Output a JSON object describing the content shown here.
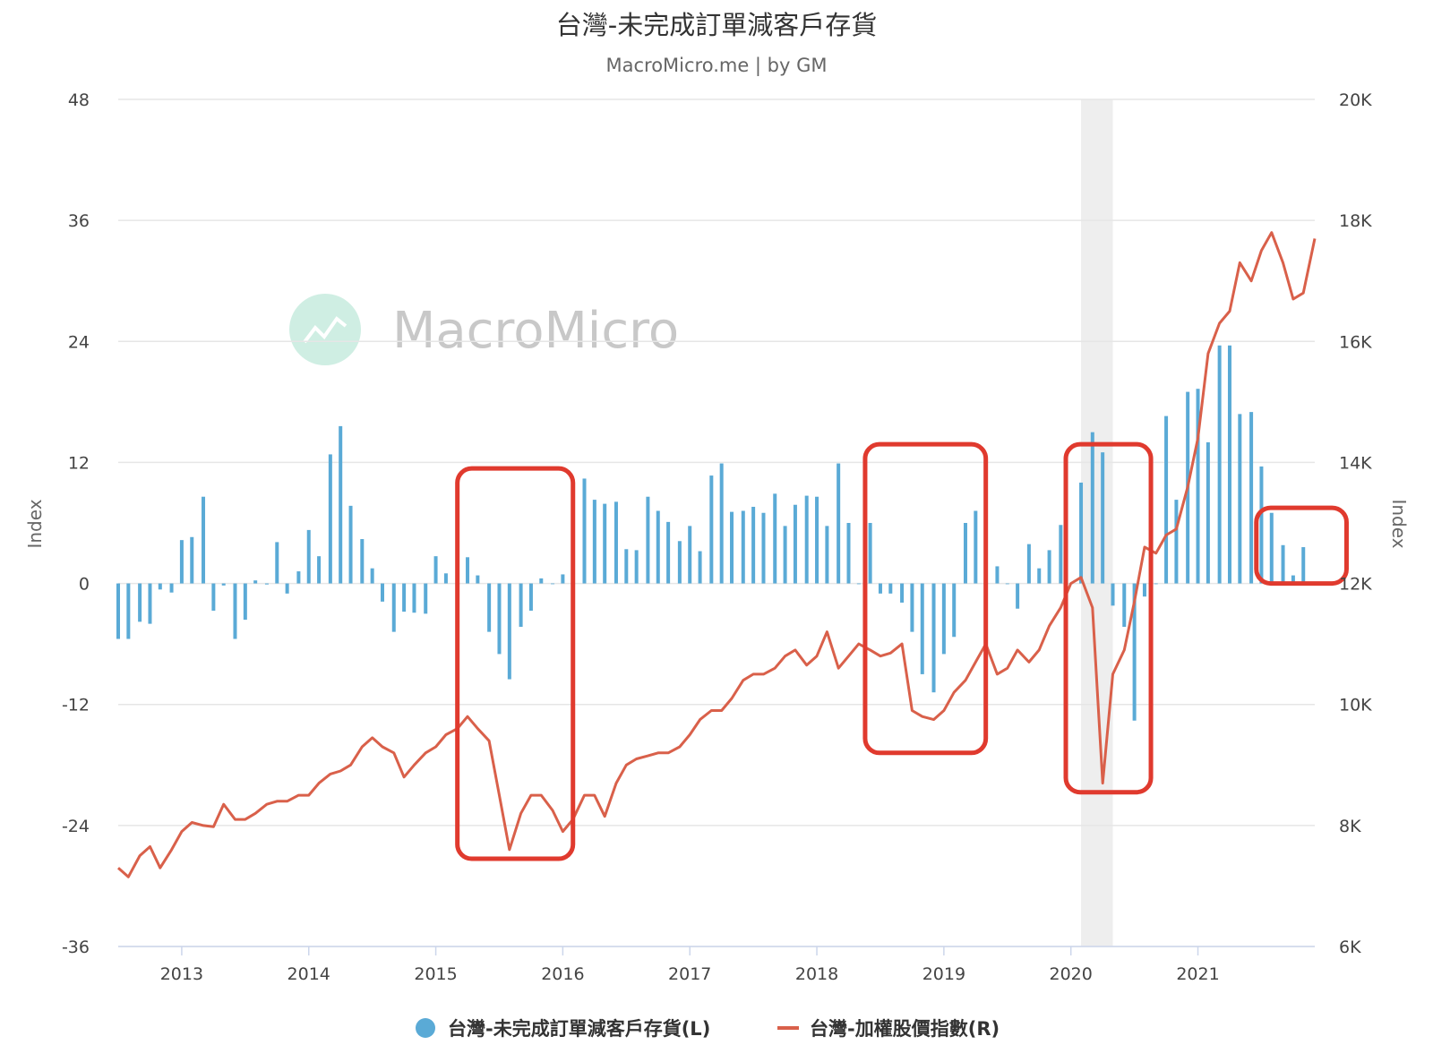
{
  "colors": {
    "bar": "#5aaad6",
    "line": "#d9604a",
    "highlight_box": "#e03a2e",
    "recession_band": "#eeeeee",
    "grid": "#e6e6e6",
    "watermark_logo": "#cfeee3"
  },
  "watermark": "MacroMicro",
  "chart_data": {
    "type": "bar",
    "title": "台灣-未完成訂單減客戶存貨",
    "subtitle": "MacroMicro.me | by GM",
    "ylabel_left": "Index",
    "ylabel_right": "Index",
    "xlim": [
      2012.5,
      2021.92
    ],
    "ylim_left": [
      -36,
      48
    ],
    "ylim_right": [
      6000,
      20000
    ],
    "y_ticks_left": [
      "48",
      "36",
      "24",
      "12",
      "0",
      "-12",
      "-24",
      "-36"
    ],
    "y_ticks_right": [
      "20K",
      "18K",
      "16K",
      "14K",
      "12K",
      "10K",
      "8K",
      "6K"
    ],
    "x_ticks": [
      "2013",
      "2014",
      "2015",
      "2016",
      "2017",
      "2018",
      "2019",
      "2020",
      "2021"
    ],
    "grid": "horizontal",
    "legend_position": "bottom-center",
    "shaded_period": [
      2020.08,
      2020.33
    ],
    "highlight_periods": [
      {
        "x": [
          2015.17,
          2016.08
        ],
        "y_right": [
          7450,
          13900
        ]
      },
      {
        "x": [
          2018.38,
          2019.33
        ],
        "y_right": [
          9200,
          14300
        ]
      },
      {
        "x": [
          2019.96,
          2020.63
        ],
        "y_right": [
          8550,
          14300
        ]
      },
      {
        "x": [
          2021.46,
          2022.17
        ],
        "y_right": [
          12000,
          13250
        ]
      }
    ],
    "series": [
      {
        "name": "台灣-未完成訂單減客戶存貨(L)",
        "kind": "bar",
        "axis": "left",
        "x": [
          2012.5,
          2012.58,
          2012.67,
          2012.75,
          2012.83,
          2012.92,
          2013.0,
          2013.08,
          2013.17,
          2013.25,
          2013.33,
          2013.42,
          2013.5,
          2013.58,
          2013.67,
          2013.75,
          2013.83,
          2013.92,
          2014.0,
          2014.08,
          2014.17,
          2014.25,
          2014.33,
          2014.42,
          2014.5,
          2014.58,
          2014.67,
          2014.75,
          2014.83,
          2014.92,
          2015.0,
          2015.08,
          2015.17,
          2015.25,
          2015.33,
          2015.42,
          2015.5,
          2015.58,
          2015.67,
          2015.75,
          2015.83,
          2015.92,
          2016.0,
          2016.08,
          2016.17,
          2016.25,
          2016.33,
          2016.42,
          2016.5,
          2016.58,
          2016.67,
          2016.75,
          2016.83,
          2016.92,
          2017.0,
          2017.08,
          2017.17,
          2017.25,
          2017.33,
          2017.42,
          2017.5,
          2017.58,
          2017.67,
          2017.75,
          2017.83,
          2017.92,
          2018.0,
          2018.08,
          2018.17,
          2018.25,
          2018.33,
          2018.42,
          2018.5,
          2018.58,
          2018.67,
          2018.75,
          2018.83,
          2018.92,
          2019.0,
          2019.08,
          2019.17,
          2019.25,
          2019.33,
          2019.42,
          2019.5,
          2019.58,
          2019.67,
          2019.75,
          2019.83,
          2019.92,
          2020.0,
          2020.08,
          2020.17,
          2020.25,
          2020.33,
          2020.42,
          2020.5,
          2020.58,
          2020.67,
          2020.75,
          2020.83,
          2020.92,
          2021.0,
          2021.08,
          2021.17,
          2021.25,
          2021.33,
          2021.42,
          2021.5,
          2021.58,
          2021.67,
          2021.75,
          2021.83,
          2021.92
        ],
        "values": [
          -5.5,
          -5.5,
          -3.8,
          -4.0,
          -0.6,
          -0.9,
          4.3,
          4.6,
          8.6,
          -2.7,
          -0.2,
          -5.5,
          -3.6,
          0.3,
          -0.1,
          4.1,
          -1.0,
          1.2,
          5.3,
          2.7,
          12.8,
          15.6,
          7.7,
          4.4,
          1.5,
          -1.8,
          -4.8,
          -2.8,
          -2.9,
          -3.0,
          2.7,
          1.0,
          7.0,
          2.6,
          0.8,
          -4.8,
          -7.0,
          -9.5,
          -4.3,
          -2.7,
          0.5,
          0.0,
          0.9,
          -0.3,
          10.4,
          8.3,
          7.9,
          8.1,
          3.4,
          3.3,
          8.6,
          7.2,
          6.1,
          4.2,
          5.7,
          3.2,
          10.7,
          11.9,
          7.1,
          7.2,
          7.6,
          7.0,
          8.9,
          5.7,
          7.8,
          8.7,
          8.6,
          5.7,
          11.9,
          6.0,
          0.0,
          6.0,
          -1.0,
          -1.0,
          -1.9,
          -4.8,
          -9.0,
          -10.8,
          -7.0,
          -5.3,
          6.0,
          7.2,
          1.7,
          1.7,
          0.0,
          -2.5,
          3.9,
          1.5,
          3.3,
          5.8,
          0.0,
          10.0,
          15.0,
          13.0,
          -2.2,
          -4.3,
          -13.6,
          -1.3,
          0.0,
          16.6,
          8.3,
          19.0,
          19.3,
          14.0,
          23.6,
          23.6,
          16.8,
          17.0,
          11.6,
          7.0,
          3.8,
          0.8,
          3.6,
          0.0
        ]
      },
      {
        "name": "台灣-加權股價指數(R)",
        "kind": "line",
        "axis": "right",
        "x": [
          2012.5,
          2012.58,
          2012.67,
          2012.75,
          2012.83,
          2012.92,
          2013.0,
          2013.08,
          2013.17,
          2013.25,
          2013.33,
          2013.42,
          2013.5,
          2013.58,
          2013.67,
          2013.75,
          2013.83,
          2013.92,
          2014.0,
          2014.08,
          2014.17,
          2014.25,
          2014.33,
          2014.42,
          2014.5,
          2014.58,
          2014.67,
          2014.75,
          2014.83,
          2014.92,
          2015.0,
          2015.08,
          2015.17,
          2015.25,
          2015.33,
          2015.42,
          2015.5,
          2015.58,
          2015.67,
          2015.75,
          2015.83,
          2015.92,
          2016.0,
          2016.08,
          2016.17,
          2016.25,
          2016.33,
          2016.42,
          2016.5,
          2016.58,
          2016.67,
          2016.75,
          2016.83,
          2016.92,
          2017.0,
          2017.08,
          2017.17,
          2017.25,
          2017.33,
          2017.42,
          2017.5,
          2017.58,
          2017.67,
          2017.75,
          2017.83,
          2017.92,
          2018.0,
          2018.08,
          2018.17,
          2018.25,
          2018.33,
          2018.42,
          2018.5,
          2018.58,
          2018.67,
          2018.75,
          2018.83,
          2018.92,
          2019.0,
          2019.08,
          2019.17,
          2019.25,
          2019.33,
          2019.42,
          2019.5,
          2019.58,
          2019.67,
          2019.75,
          2019.83,
          2019.92,
          2020.0,
          2020.08,
          2020.17,
          2020.25,
          2020.33,
          2020.42,
          2020.5,
          2020.58,
          2020.67,
          2020.75,
          2020.83,
          2020.92,
          2021.0,
          2021.08,
          2021.17,
          2021.25,
          2021.33,
          2021.42,
          2021.5,
          2021.58,
          2021.67,
          2021.75,
          2021.83,
          2021.92
        ],
        "values": [
          7300,
          7150,
          7500,
          7650,
          7300,
          7600,
          7900,
          8050,
          8000,
          7980,
          8350,
          8100,
          8100,
          8200,
          8350,
          8400,
          8400,
          8500,
          8500,
          8700,
          8850,
          8900,
          9000,
          9300,
          9450,
          9300,
          9200,
          8800,
          9000,
          9200,
          9300,
          9500,
          9600,
          9800,
          9600,
          9400,
          8500,
          7600,
          8200,
          8500,
          8500,
          8250,
          7900,
          8100,
          8500,
          8500,
          8150,
          8700,
          9000,
          9100,
          9150,
          9200,
          9200,
          9300,
          9500,
          9750,
          9900,
          9900,
          10100,
          10400,
          10500,
          10500,
          10600,
          10800,
          10900,
          10650,
          10800,
          11200,
          10600,
          10800,
          11000,
          10900,
          10800,
          10850,
          11000,
          9900,
          9800,
          9750,
          9900,
          10200,
          10400,
          10700,
          11000,
          10500,
          10600,
          10900,
          10700,
          10900,
          11300,
          11600,
          12000,
          12100,
          11600,
          8700,
          10500,
          10900,
          11700,
          12600,
          12500,
          12800,
          12900,
          13600,
          14400,
          15800,
          16300,
          16500,
          17300,
          17000,
          17500,
          17800,
          17300,
          16700,
          16800,
          17700
        ]
      }
    ]
  },
  "legend": {
    "bar_label": "台灣-未完成訂單減客戶存貨(L)",
    "line_label": "台灣-加權股價指數(R)"
  }
}
